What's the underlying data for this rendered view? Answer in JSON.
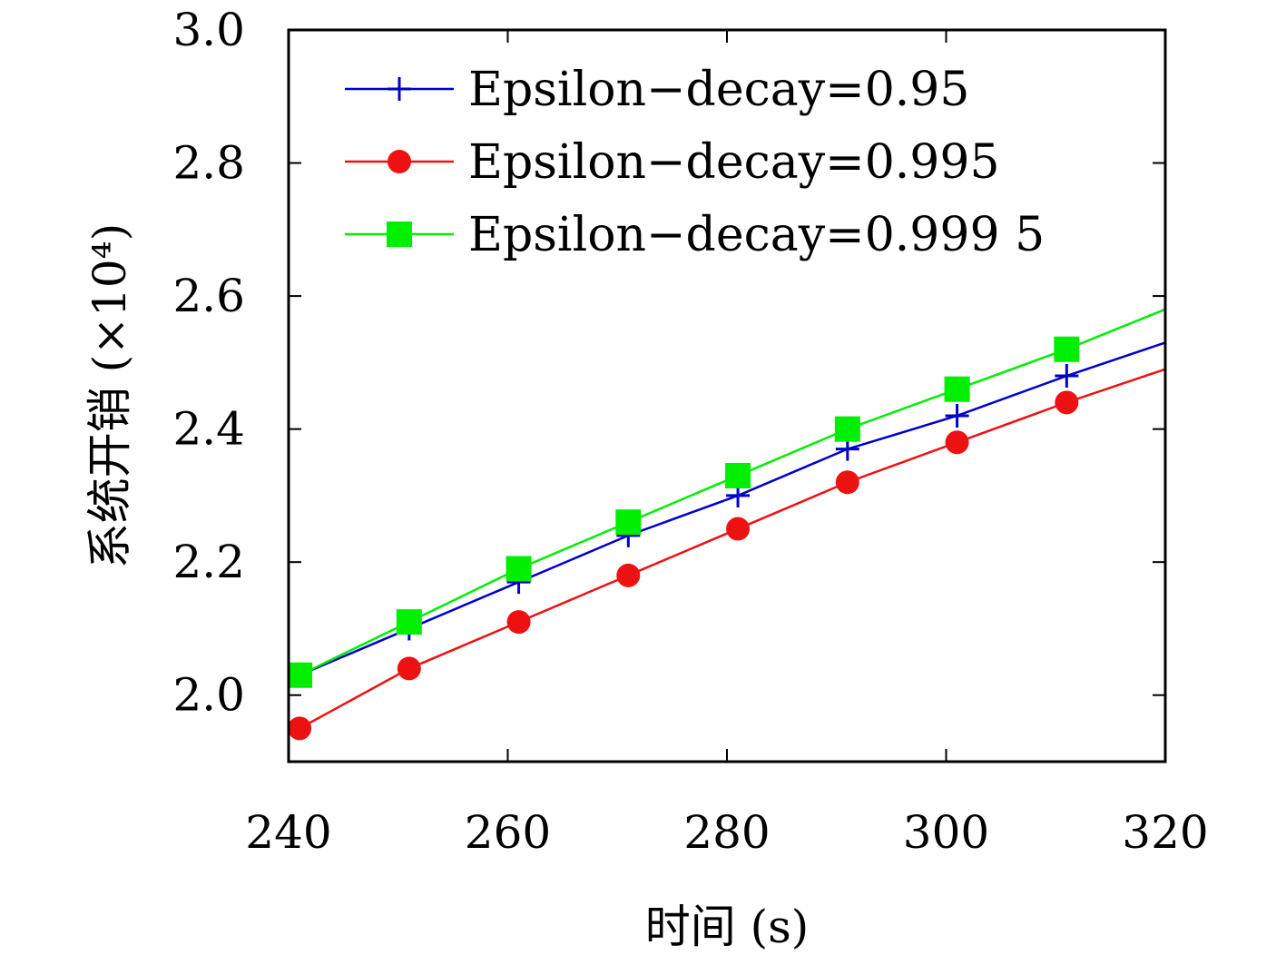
{
  "chart_data": {
    "type": "line",
    "title": "",
    "xlabel": "时间 (s)",
    "ylabel": "系统开销 (×10⁴)",
    "xlim": [
      240,
      320
    ],
    "ylim": [
      1.9,
      3.0
    ],
    "xticks": [
      240,
      260,
      280,
      300,
      320
    ],
    "xtick_labels": [
      "240",
      "260",
      "280",
      "300",
      "320"
    ],
    "yticks": [
      2.0,
      2.2,
      2.4,
      2.6,
      2.8,
      3.0
    ],
    "ytick_labels": [
      "2.0",
      "2.2",
      "2.4",
      "2.6",
      "2.8",
      "3.0"
    ],
    "grid": false,
    "legend_position": "top-left",
    "series": [
      {
        "name": "Epsilon−decay=0.95",
        "color": "#0000cc",
        "marker": "plus",
        "x": [
          241,
          251,
          261,
          271,
          281,
          291,
          301,
          311,
          320
        ],
        "y": [
          2.03,
          2.1,
          2.17,
          2.24,
          2.3,
          2.37,
          2.42,
          2.48,
          2.53
        ]
      },
      {
        "name": "Epsilon−decay=0.995",
        "color": "#ee1111",
        "marker": "circle",
        "x": [
          241,
          251,
          261,
          271,
          281,
          291,
          301,
          311,
          320
        ],
        "y": [
          1.95,
          2.04,
          2.11,
          2.18,
          2.25,
          2.32,
          2.38,
          2.44,
          2.49
        ]
      },
      {
        "name": "Epsilon−decay=0.999 5",
        "color": "#00ee00",
        "marker": "square",
        "x": [
          241,
          251,
          261,
          271,
          281,
          291,
          301,
          311,
          320
        ],
        "y": [
          2.03,
          2.11,
          2.19,
          2.26,
          2.33,
          2.4,
          2.46,
          2.52,
          2.58
        ]
      }
    ]
  }
}
